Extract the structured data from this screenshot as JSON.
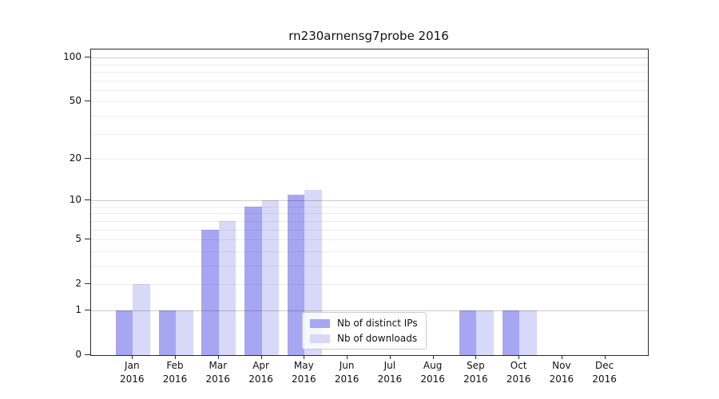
{
  "title": "rn230arnensg7probe 2016",
  "chart_data": {
    "type": "bar",
    "title": "rn230arnensg7probe 2016",
    "categories": [
      "Jan 2016",
      "Feb 2016",
      "Mar 2016",
      "Apr 2016",
      "May 2016",
      "Jun 2016",
      "Jul 2016",
      "Aug 2016",
      "Sep 2016",
      "Oct 2016",
      "Nov 2016",
      "Dec 2016"
    ],
    "series": [
      {
        "name": "Nb of distinct IPs",
        "color": "#a6a6f2",
        "values": [
          1,
          1,
          6,
          9,
          11,
          0,
          0,
          0,
          1,
          1,
          0,
          0
        ]
      },
      {
        "name": "Nb of downloads",
        "color": "#d8d8f8",
        "values": [
          2,
          1,
          7,
          10,
          12,
          0,
          0,
          0,
          1,
          1,
          0,
          0
        ]
      }
    ],
    "xlabel": "",
    "ylabel": "",
    "yscale": "log1p",
    "ylim": [
      0,
      114
    ],
    "y_ticks": [
      0,
      1,
      2,
      5,
      10,
      20,
      50,
      100
    ],
    "y_major_gridlines": [
      1,
      10,
      100
    ],
    "y_minor_gridlines": [
      2,
      3,
      4,
      5,
      6,
      7,
      8,
      9,
      20,
      30,
      40,
      50,
      60,
      70,
      80,
      90
    ],
    "grid": true,
    "legend": {
      "location": "lower center",
      "entries": [
        "Nb of distinct IPs",
        "Nb of downloads"
      ]
    }
  }
}
